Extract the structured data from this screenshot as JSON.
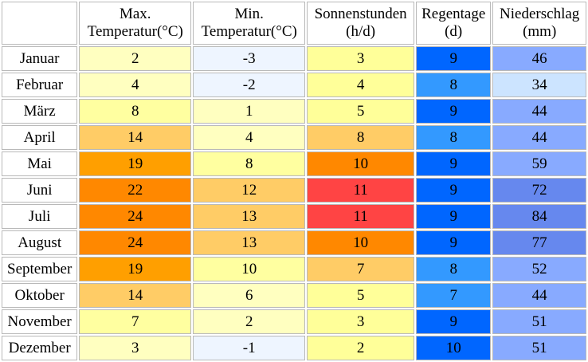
{
  "headers": [
    "",
    "Max.\nTemperatur(°C)",
    "Min.\nTemperatur(°C)",
    "Sonnenstunden\n(h/d)",
    "Regentage\n(d)",
    "Niederschlag\n(mm)"
  ],
  "rows": [
    {
      "month": "Januar",
      "cells": [
        {
          "v": "2",
          "c": "#ffffc0"
        },
        {
          "v": "-3",
          "c": "#eef5ff"
        },
        {
          "v": "3",
          "c": "#ffff99"
        },
        {
          "v": "9",
          "c": "#0066ff"
        },
        {
          "v": "46",
          "c": "#88aaff"
        }
      ]
    },
    {
      "month": "Februar",
      "cells": [
        {
          "v": "4",
          "c": "#ffffc0"
        },
        {
          "v": "-2",
          "c": "#eef5ff"
        },
        {
          "v": "4",
          "c": "#ffff99"
        },
        {
          "v": "8",
          "c": "#3399ff"
        },
        {
          "v": "34",
          "c": "#cce4ff"
        }
      ]
    },
    {
      "month": "März",
      "cells": [
        {
          "v": "8",
          "c": "#ffffa0"
        },
        {
          "v": "1",
          "c": "#ffffc0"
        },
        {
          "v": "5",
          "c": "#ffff99"
        },
        {
          "v": "9",
          "c": "#0066ff"
        },
        {
          "v": "44",
          "c": "#88aaff"
        }
      ]
    },
    {
      "month": "April",
      "cells": [
        {
          "v": "14",
          "c": "#ffcc66"
        },
        {
          "v": "4",
          "c": "#ffffc0"
        },
        {
          "v": "8",
          "c": "#ffcc66"
        },
        {
          "v": "8",
          "c": "#3399ff"
        },
        {
          "v": "44",
          "c": "#88aaff"
        }
      ]
    },
    {
      "month": "Mai",
      "cells": [
        {
          "v": "19",
          "c": "#ff9f00"
        },
        {
          "v": "8",
          "c": "#ffffa0"
        },
        {
          "v": "10",
          "c": "#ff8800"
        },
        {
          "v": "9",
          "c": "#0066ff"
        },
        {
          "v": "59",
          "c": "#88aaff"
        }
      ]
    },
    {
      "month": "Juni",
      "cells": [
        {
          "v": "22",
          "c": "#ff8800"
        },
        {
          "v": "12",
          "c": "#ffcc66"
        },
        {
          "v": "11",
          "c": "#ff4444"
        },
        {
          "v": "9",
          "c": "#0066ff"
        },
        {
          "v": "72",
          "c": "#6688ee"
        }
      ]
    },
    {
      "month": "Juli",
      "cells": [
        {
          "v": "24",
          "c": "#ff8800"
        },
        {
          "v": "13",
          "c": "#ffcc66"
        },
        {
          "v": "11",
          "c": "#ff4444"
        },
        {
          "v": "9",
          "c": "#0066ff"
        },
        {
          "v": "84",
          "c": "#6688ee"
        }
      ]
    },
    {
      "month": "August",
      "cells": [
        {
          "v": "24",
          "c": "#ff8800"
        },
        {
          "v": "13",
          "c": "#ffcc66"
        },
        {
          "v": "10",
          "c": "#ff8800"
        },
        {
          "v": "9",
          "c": "#0066ff"
        },
        {
          "v": "77",
          "c": "#6688ee"
        }
      ]
    },
    {
      "month": "September",
      "cells": [
        {
          "v": "19",
          "c": "#ff9f00"
        },
        {
          "v": "10",
          "c": "#ffffa0"
        },
        {
          "v": "7",
          "c": "#ffcc66"
        },
        {
          "v": "8",
          "c": "#3399ff"
        },
        {
          "v": "52",
          "c": "#88aaff"
        }
      ]
    },
    {
      "month": "Oktober",
      "cells": [
        {
          "v": "14",
          "c": "#ffcc66"
        },
        {
          "v": "6",
          "c": "#ffffc0"
        },
        {
          "v": "5",
          "c": "#ffff99"
        },
        {
          "v": "7",
          "c": "#3399ff"
        },
        {
          "v": "44",
          "c": "#88aaff"
        }
      ]
    },
    {
      "month": "November",
      "cells": [
        {
          "v": "7",
          "c": "#ffffa0"
        },
        {
          "v": "2",
          "c": "#ffffc0"
        },
        {
          "v": "3",
          "c": "#ffff99"
        },
        {
          "v": "9",
          "c": "#0066ff"
        },
        {
          "v": "51",
          "c": "#88aaff"
        }
      ]
    },
    {
      "month": "Dezember",
      "cells": [
        {
          "v": "3",
          "c": "#ffffc0"
        },
        {
          "v": "-1",
          "c": "#eef5ff"
        },
        {
          "v": "2",
          "c": "#ffff99"
        },
        {
          "v": "10",
          "c": "#0066ff"
        },
        {
          "v": "51",
          "c": "#88aaff"
        }
      ]
    }
  ]
}
